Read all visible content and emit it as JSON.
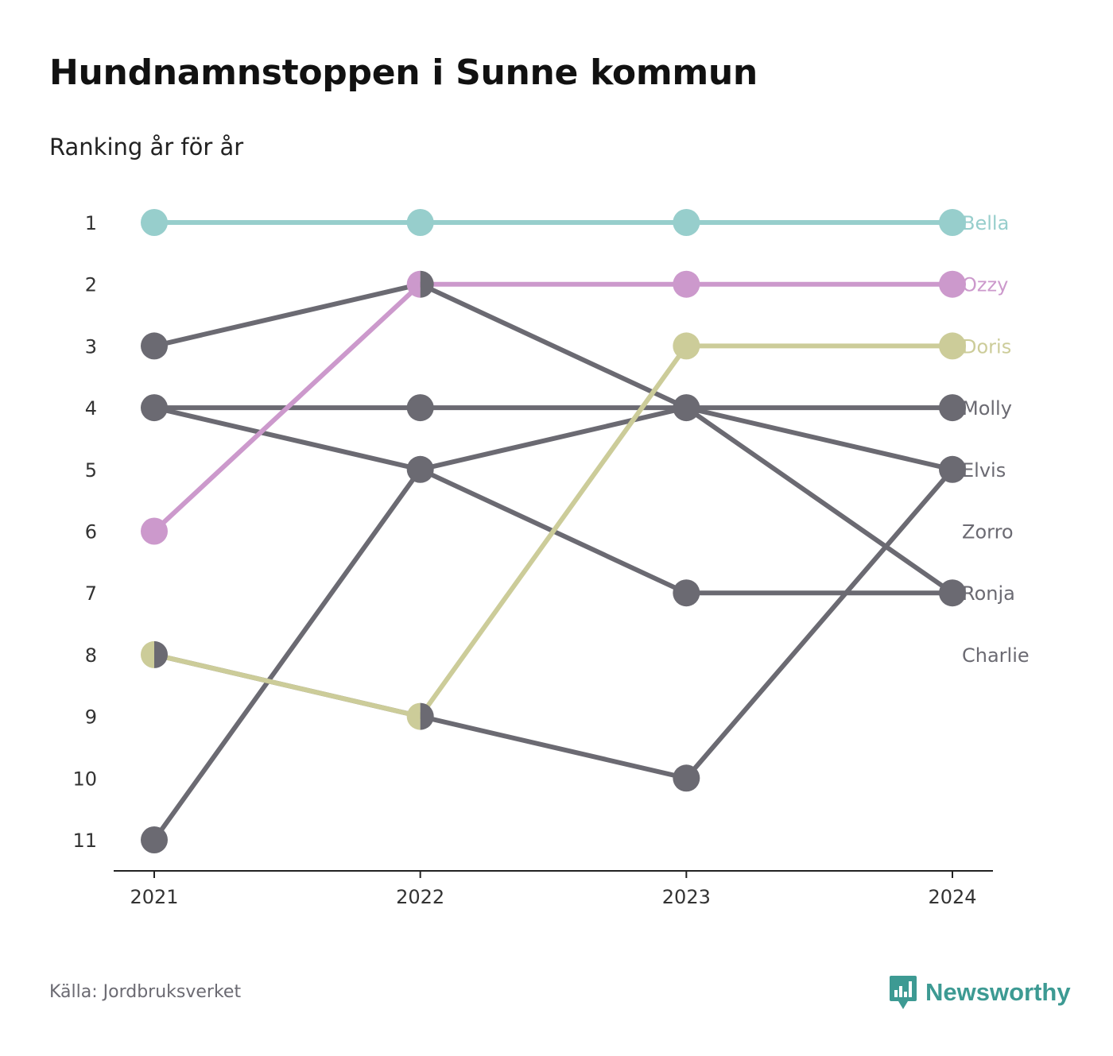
{
  "title": "Hundnamnstoppen i Sunne kommun",
  "subtitle": "Ranking år för år",
  "source": "Källa: Jordbruksverket",
  "brand": {
    "name": "Newsworthy",
    "icon": "bar-chart-speech-bubble-icon",
    "color": "#3d9a93"
  },
  "chart_data": {
    "type": "line",
    "title": "Hundnamnstoppen i Sunne kommun",
    "subtitle": "Ranking år för år",
    "x": [
      "2021",
      "2022",
      "2023",
      "2024"
    ],
    "y_ticks": [
      "1",
      "2",
      "3",
      "4",
      "5",
      "6",
      "7",
      "8",
      "9",
      "10",
      "11"
    ],
    "ylim": [
      1,
      11
    ],
    "y_inverted": true,
    "grid": false,
    "legend": "direct-labels-right",
    "series": [
      {
        "name": "Bella",
        "ranks": [
          1,
          1,
          1,
          1
        ],
        "color": "#97cecc"
      },
      {
        "name": "Ozzy",
        "ranks": [
          6,
          2,
          2,
          2
        ],
        "color": "#cc99cc"
      },
      {
        "name": "Doris",
        "ranks": [
          8,
          9,
          3,
          3
        ],
        "color": "#cccc99"
      },
      {
        "name": "Molly",
        "ranks": [
          4,
          4,
          4,
          4
        ],
        "color": "#6b6a72"
      },
      {
        "name": "Elvis",
        "ranks": [
          11,
          5,
          4,
          5
        ],
        "color": "#6b6a72"
      },
      {
        "name": "Zorro",
        "ranks": [
          8,
          9,
          10,
          5
        ],
        "color": "#6b6a72"
      },
      {
        "name": "Ronja",
        "ranks": [
          3,
          2,
          4,
          7
        ],
        "color": "#6b6a72"
      },
      {
        "name": "Charlie",
        "ranks": [
          4,
          5,
          7,
          7
        ],
        "color": "#6b6a72"
      }
    ]
  }
}
